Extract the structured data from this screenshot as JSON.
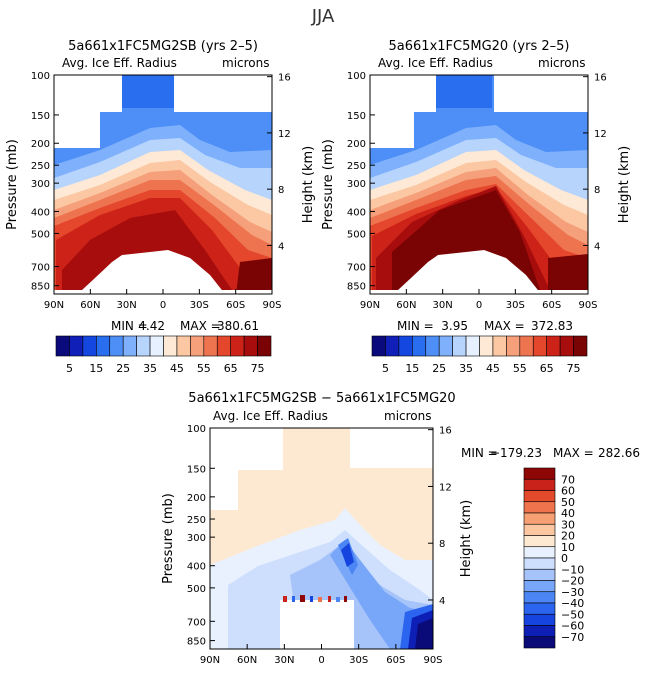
{
  "page_title": "JJA",
  "colors": {
    "panel_scale": [
      "#0b0a7c",
      "#0f1fb8",
      "#1446e0",
      "#2a6ef0",
      "#4d8ef7",
      "#7eb0fb",
      "#b7d4fd",
      "#e6f0fe",
      "#fde9d5",
      "#fbc8a3",
      "#f5a07a",
      "#ee7450",
      "#e4472b",
      "#cd2217",
      "#a80d0d",
      "#7a0303"
    ],
    "diff_scale": [
      "#0a0a78",
      "#0e1fb6",
      "#1544de",
      "#2b65ef",
      "#4c86f5",
      "#78a6f8",
      "#a6c3fa",
      "#cddffd",
      "#e9f1fe",
      "#fde9d2",
      "#fbc6a0",
      "#f6a074",
      "#ef744d",
      "#e34a2c",
      "#c9221a",
      "#8e0606"
    ]
  },
  "chart_data": [
    {
      "type": "contour",
      "title": "5a661x1FC5MG2SB (yrs 2–5)",
      "left_caption": "Avg. Ice Eff. Radius",
      "right_caption": "microns",
      "ylabel": "Pressure (mb)",
      "y2label": "Height (km)",
      "x_ticks": [
        "90N",
        "60N",
        "30N",
        "0",
        "30S",
        "60S",
        "90S"
      ],
      "y_ticks": [
        "100",
        "150",
        "200",
        "250",
        "300",
        "400",
        "500",
        "700",
        "850"
      ],
      "y2_ticks": [
        "16",
        "12",
        "8",
        "4"
      ],
      "min_label": "MIN =",
      "min_value": "4.42",
      "max_label": "MAX =",
      "max_value": "380.61",
      "surface_latitudes": [
        -90,
        -45,
        -30,
        0,
        25,
        90
      ],
      "surface_pressures": [
        850,
        700,
        600,
        650,
        700,
        850
      ]
    },
    {
      "type": "contour",
      "title": "5a661x1FC5MG20 (yrs 2–5)",
      "left_caption": "Avg. Ice Eff. Radius",
      "right_caption": "microns",
      "ylabel": "Pressure (mb)",
      "y2label": "Height (km)",
      "x_ticks": [
        "90N",
        "60N",
        "30N",
        "0",
        "30S",
        "60S",
        "90S"
      ],
      "y_ticks": [
        "100",
        "150",
        "200",
        "250",
        "300",
        "400",
        "500",
        "700",
        "850"
      ],
      "y2_ticks": [
        "16",
        "12",
        "8",
        "4"
      ],
      "min_label": "MIN =",
      "min_value": "3.95",
      "max_label": "MAX =",
      "max_value": "372.83",
      "surface_latitudes": [
        -90,
        -45,
        -30,
        0,
        25,
        90
      ],
      "surface_pressures": [
        850,
        700,
        600,
        650,
        700,
        850
      ]
    },
    {
      "type": "contour",
      "title": "5a661x1FC5MG2SB − 5a661x1FC5MG20",
      "left_caption": "Avg. Ice Eff. Radius",
      "right_caption": "microns",
      "ylabel": "Pressure (mb)",
      "y2label": "Height (km)",
      "x_ticks": [
        "90N",
        "60N",
        "30N",
        "0",
        "30S",
        "60S",
        "90S"
      ],
      "y_ticks": [
        "100",
        "150",
        "200",
        "250",
        "300",
        "400",
        "500",
        "700",
        "850"
      ],
      "y2_ticks": [
        "16",
        "12",
        "8",
        "4"
      ],
      "min_label": "MIN =",
      "min_value": "−179.23",
      "max_label": "MAX =",
      "max_value": "282.66"
    }
  ],
  "colorbars": {
    "panel": {
      "levels": [
        5,
        10,
        15,
        20,
        25,
        30,
        35,
        40,
        45,
        50,
        55,
        60,
        65,
        70,
        75
      ],
      "labels": [
        "5",
        "15",
        "25",
        "35",
        "45",
        "55",
        "65",
        "75"
      ]
    },
    "diff": {
      "levels": [
        70,
        60,
        50,
        40,
        30,
        20,
        10,
        0,
        -10,
        -20,
        -30,
        -40,
        -50,
        -60,
        -70
      ],
      "labels": [
        "70",
        "60",
        "50",
        "40",
        "30",
        "20",
        "10",
        "0",
        "−10",
        "−20",
        "−30",
        "−40",
        "−50",
        "−60",
        "−70"
      ]
    }
  }
}
